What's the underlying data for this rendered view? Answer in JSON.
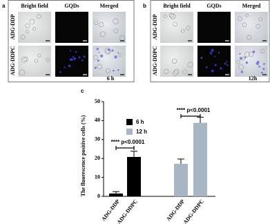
{
  "panels": [
    {
      "label": "a",
      "columns": [
        "Bright field",
        "GQDs",
        "Merged"
      ],
      "rows": [
        "ADG-DDP",
        "ADG-DDPC"
      ],
      "time": "6 h"
    },
    {
      "label": "b",
      "columns": [
        "Bright field",
        "GQDs",
        "Merged"
      ],
      "rows": [
        "ADG-DDP",
        "ADG-DDPC"
      ],
      "time": "12h"
    }
  ],
  "chart_data": {
    "type": "bar",
    "label": "c",
    "y_label": "The fluorescence positive cells (%)",
    "categories": [
      "ADG-DDP",
      "ADG-DDPC",
      "ADG-DDP",
      "ADG-DDPC"
    ],
    "series": [
      {
        "name": "6 h",
        "color": "#000000",
        "values": [
          1.5,
          20.8,
          null,
          null
        ],
        "errors": [
          1,
          3,
          null,
          null
        ]
      },
      {
        "name": "12 h",
        "color": "#a8b5c3",
        "values": [
          null,
          null,
          17.2,
          38.8
        ],
        "errors": [
          null,
          null,
          2.5,
          3
        ]
      }
    ],
    "ylim": [
      0,
      50
    ],
    "yticks": [
      0,
      10,
      20,
      30,
      40,
      50
    ],
    "annotations": [
      "**** p<0.0001",
      "**** p<0.0001"
    ],
    "legend": "upper left"
  }
}
